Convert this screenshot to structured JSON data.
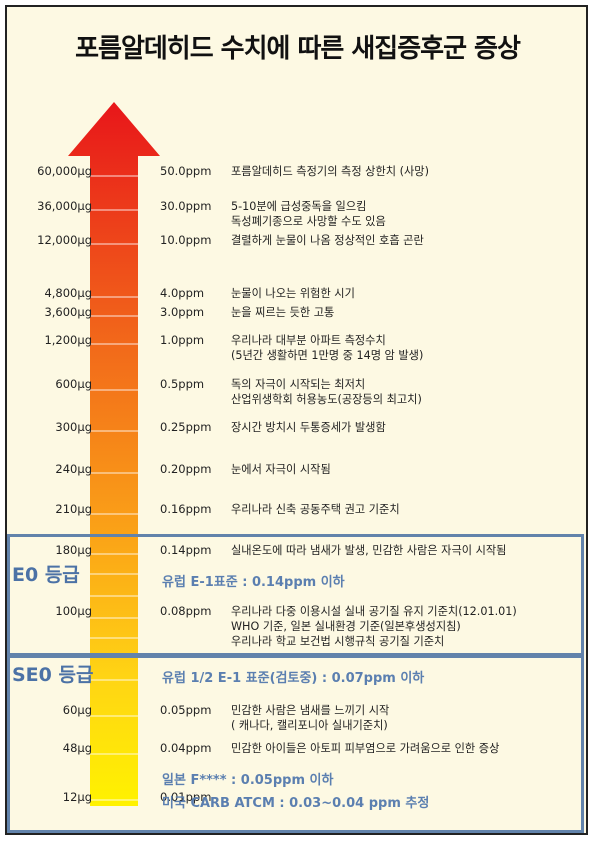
{
  "title": "포름알데히드 수치에 따른 새집증후군 증상",
  "rows": [
    {
      "ug": "60,000μg",
      "ppm": "50.0ppm",
      "lines": [
        "포름알데히드 측정기의 측정 상한치 (사망)"
      ]
    },
    {
      "ug": "36,000μg",
      "ppm": "30.0ppm",
      "lines": [
        "5-10분에 급성중독을 일으킴",
        "독성폐기종으로 사망할 수도 있음"
      ]
    },
    {
      "ug": "12,000μg",
      "ppm": "10.0ppm",
      "lines": [
        "결렬하게 눈물이 나옴 정상적인 호흡 곤란"
      ]
    },
    {
      "ug": "4,800μg",
      "ppm": "4.0ppm",
      "lines": [
        "눈물이 나오는 위험한 시기"
      ]
    },
    {
      "ug": "3,600μg",
      "ppm": "3.0ppm",
      "lines": [
        "눈을 찌르는 듯한 고통"
      ]
    },
    {
      "ug": "1,200μg",
      "ppm": "1.0ppm",
      "lines": [
        "우리나라 대부분 아파트 측정수치",
        "(5년간 생활하면 1만명 중 14명 암 발생)"
      ]
    },
    {
      "ug": "600μg",
      "ppm": "0.5ppm",
      "lines": [
        "독의 자극이 시작되는 최저치",
        "산업위생학회 허용농도(공장등의 최고치)"
      ]
    },
    {
      "ug": "300μg",
      "ppm": "0.25ppm",
      "lines": [
        "장시간 방치시  두통증세가 발생함"
      ]
    },
    {
      "ug": "240μg",
      "ppm": "0.20ppm",
      "lines": [
        "눈에서 자극이 시작됨"
      ]
    },
    {
      "ug": "210μg",
      "ppm": "0.16ppm",
      "lines": [
        "우리나라 신축 공동주택 권고 기준치"
      ]
    },
    {
      "ug": "180μg",
      "ppm": "0.14ppm",
      "lines": [
        "실내온도에 따라 냄새가 발생, 민감한 사람은 자극이 시작됨"
      ]
    },
    {
      "ug": "100μg",
      "ppm": "0.08ppm",
      "lines": [
        "우리나라 다중 이용시설 실내 공기질 유지 기준치(12.01.01)",
        "WHO 기준, 일본 실내환경 기준(일본후생성지침)",
        "우리나라 학교 보건법 시행규칙 공기질 기준치"
      ]
    },
    {
      "ug": "60μg",
      "ppm": "0.05ppm",
      "lines": [
        "민감한 사람은 냄새를 느끼기 시작",
        "( 캐나다, 캘리포니아 실내기준치)"
      ]
    },
    {
      "ug": "48μg",
      "ppm": "0.04ppm",
      "lines": [
        "민감한 아이들은 아토피 피부염으로 가려움으로 인한 증상"
      ]
    },
    {
      "ug": "12μg",
      "ppm": "0.01ppm",
      "lines": []
    }
  ],
  "grades": {
    "e0": "E0 등급",
    "se0": "SE0 등급"
  },
  "standards": {
    "eu_e1": "유럽 E-1표준 : 0.14ppm 이하",
    "eu_half_e1": "유럽 1/2 E-1 표준(검토중) : 0.07ppm 이하",
    "japan": "일본 F**** : 0.05ppm 이하",
    "carb": "미국 CARB ATCM : 0.03~0.04 ppm 추정"
  },
  "colors": {
    "arrow_top": "#e8161a",
    "arrow_mid": "#f57a14",
    "arrow_bottom": "#fff200",
    "zone_border": "#6283ab",
    "standard_text": "#5b7fb0"
  }
}
